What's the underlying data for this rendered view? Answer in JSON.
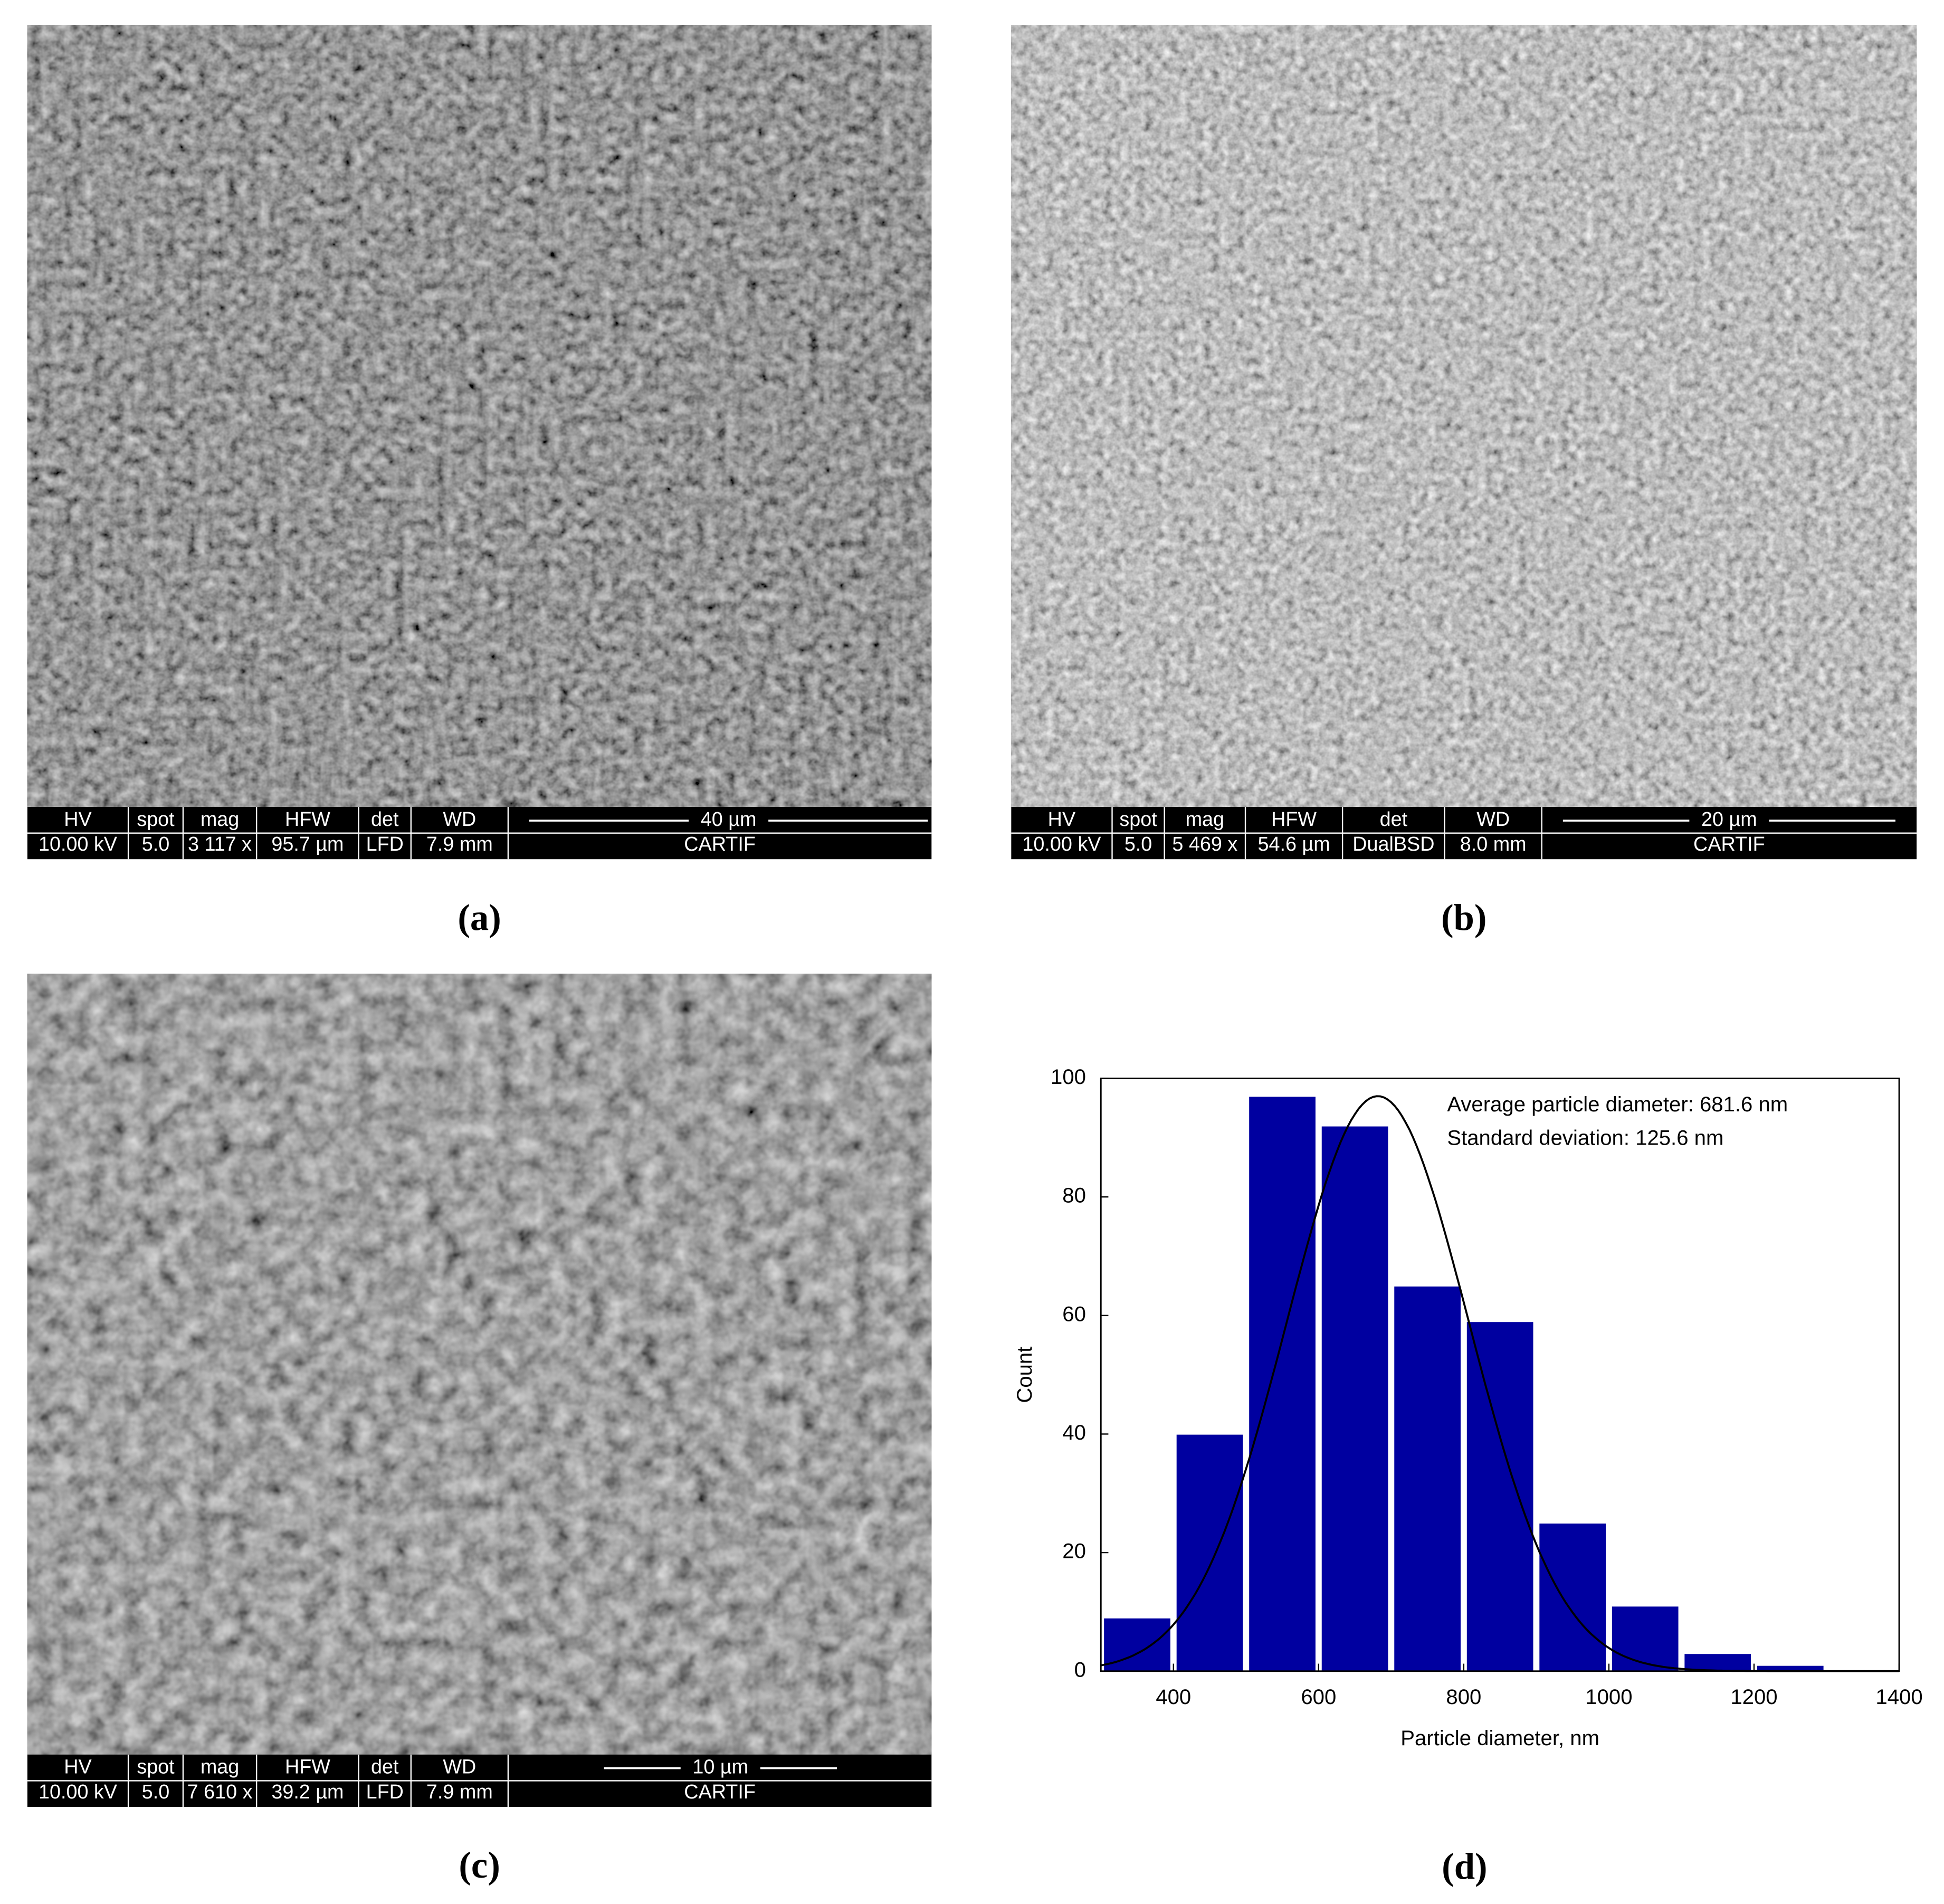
{
  "panels": [
    {
      "label": "(a)",
      "headers": [
        "HV",
        "spot",
        "mag",
        "HFW",
        "det",
        "WD"
      ],
      "values": [
        "10.00 kV",
        "5.0",
        "3 117 x",
        "95.7 µm",
        "LFD",
        "7.9 mm"
      ],
      "scale_bar": "40 µm",
      "lab": "CARTIF"
    },
    {
      "label": "(b)",
      "headers": [
        "HV",
        "spot",
        "mag",
        "HFW",
        "det",
        "WD"
      ],
      "values": [
        "10.00 kV",
        "5.0",
        "5 469 x",
        "54.6 µm",
        "DualBSD",
        "8.0 mm"
      ],
      "scale_bar": "20 µm",
      "lab": "CARTIF"
    },
    {
      "label": "(c)",
      "headers": [
        "HV",
        "spot",
        "mag",
        "HFW",
        "det",
        "WD"
      ],
      "values": [
        "10.00 kV",
        "5.0",
        "7 610 x",
        "39.2 µm",
        "LFD",
        "7.9 mm"
      ],
      "scale_bar": "10 µm",
      "lab": "CARTIF"
    }
  ],
  "chart_data": {
    "type": "histogram",
    "panel_label": "(d)",
    "xlabel": "Particle diameter, nm",
    "ylabel": "Count",
    "annotations": [
      "Average particle diameter: 681.6 nm",
      "Standard deviation: 125.6 nm"
    ],
    "bins": [
      300,
      400,
      500,
      600,
      700,
      800,
      900,
      1000,
      1100,
      1200,
      1300
    ],
    "values": [
      9,
      40,
      97,
      92,
      65,
      59,
      25,
      11,
      3,
      1
    ],
    "color": "#0000a0",
    "fit": {
      "mean": 681.6,
      "sd": 125.6,
      "peak": 97
    },
    "xlim": [
      300,
      1400
    ],
    "xticks": [
      400,
      600,
      800,
      1000,
      1200,
      1400
    ],
    "ylim": [
      0,
      100
    ],
    "yticks": [
      0,
      20,
      40,
      60,
      80,
      100
    ]
  }
}
